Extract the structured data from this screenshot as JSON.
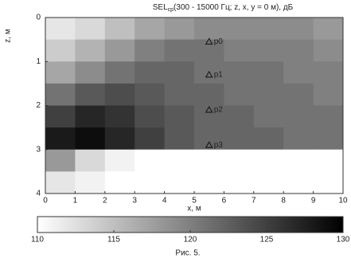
{
  "chart_data": {
    "type": "heatmap",
    "title": "SEL",
    "title_subscript": "ср",
    "title_rest": "(300 - 15000 Гц; z, x, y = 0 м), дБ",
    "xlabel": "x, м",
    "ylabel": "z, м",
    "caption": "Рис. 5.",
    "x": [
      0.5,
      1.5,
      2.5,
      3.5,
      4.5,
      5.5,
      6.5,
      7.5,
      8.5,
      9.5
    ],
    "y": [
      0.25,
      0.75,
      1.25,
      1.75,
      2.25,
      2.75,
      3.25,
      3.75
    ],
    "z": [
      [
        112,
        113,
        115,
        117,
        118,
        119,
        119,
        119,
        119,
        118
      ],
      [
        114,
        116,
        118,
        120,
        121,
        121,
        120,
        120,
        120,
        119
      ],
      [
        117,
        119,
        121,
        122,
        122,
        121,
        121,
        121,
        120,
        120
      ],
      [
        121,
        123,
        124,
        123,
        122,
        122,
        121,
        121,
        121,
        120
      ],
      [
        125,
        127,
        126,
        124,
        123,
        122,
        122,
        121,
        121,
        121
      ],
      [
        128,
        129,
        127,
        125,
        123,
        122,
        122,
        122,
        121,
        121
      ],
      [
        118,
        113,
        111,
        110,
        110,
        110,
        110,
        110,
        110,
        110
      ],
      [
        112,
        111,
        110,
        110,
        110,
        110,
        110,
        110,
        110,
        110
      ]
    ],
    "xlim": [
      0,
      10
    ],
    "xticks": [
      0,
      1,
      2,
      3,
      4,
      5,
      6,
      7,
      8,
      9,
      10
    ],
    "ylim": [
      0,
      4
    ],
    "yticks": [
      0,
      1,
      2,
      3,
      4
    ],
    "y_inverted": true,
    "zlim": [
      110,
      130
    ],
    "zticks": [
      110,
      115,
      120,
      125,
      130
    ],
    "colormap": [
      "#ffffff",
      "#000000"
    ],
    "annotations": [
      {
        "text": "p0",
        "x": 5.5,
        "y": 0.55
      },
      {
        "text": "p1",
        "x": 5.5,
        "y": 1.3
      },
      {
        "text": "p2",
        "x": 5.5,
        "y": 2.1
      },
      {
        "text": "p3",
        "x": 5.5,
        "y": 2.9
      }
    ]
  }
}
